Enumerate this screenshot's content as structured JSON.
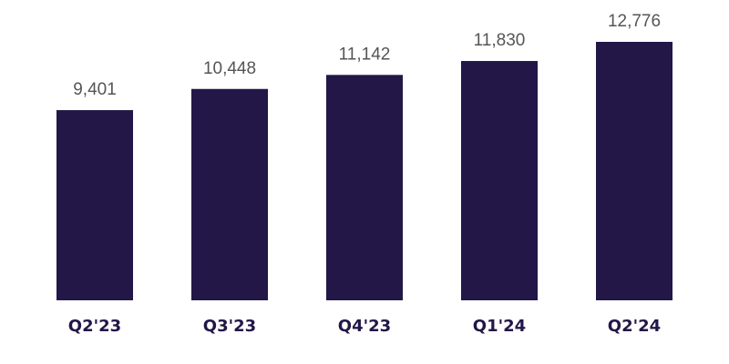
{
  "chart_data": {
    "type": "bar",
    "categories": [
      "Q2'23",
      "Q3'23",
      "Q4'23",
      "Q1'24",
      "Q2'24"
    ],
    "values": [
      9401,
      10448,
      11142,
      11830,
      12776
    ],
    "value_labels": [
      "9,401",
      "10,448",
      "11,142",
      "11,830",
      "12,776"
    ],
    "color": "#221747"
  }
}
